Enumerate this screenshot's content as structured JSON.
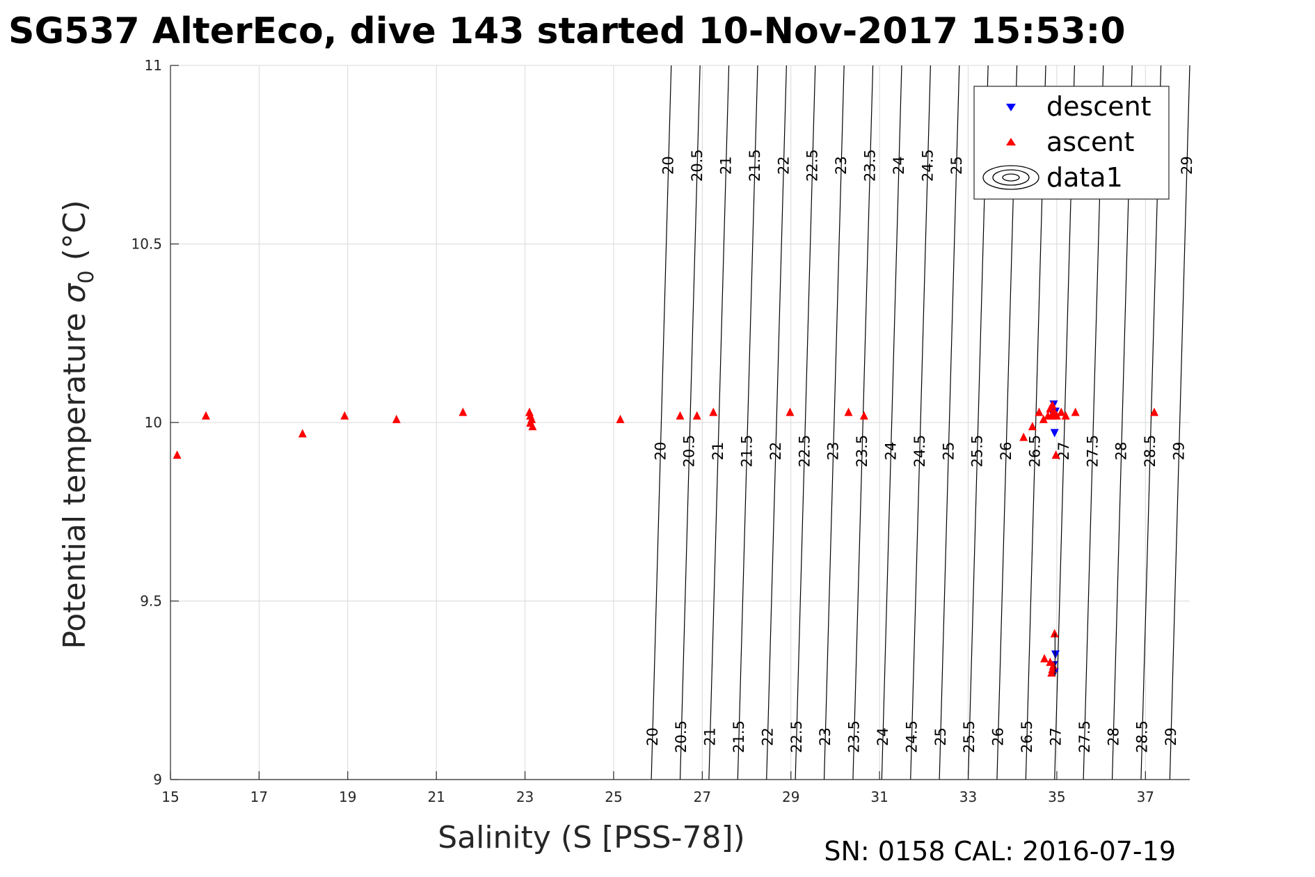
{
  "title": "SG537 AlterEco, dive 143 started 10-Nov-2017 15:53:0",
  "footer": "SN: 0158  CAL: 2016-07-19",
  "chart_data": {
    "type": "scatter",
    "title": "SG537 AlterEco, dive 143 started 10-Nov-2017 15:53:0",
    "xlabel": "Salinity (S [PSS-78])",
    "ylabel_main": "Potential temperature ",
    "ylabel_sigma": "σ",
    "ylabel_sub": "0",
    "ylabel_unit": " (°C)",
    "xlim": [
      15,
      38
    ],
    "ylim": [
      9,
      11
    ],
    "xticks": [
      15,
      17,
      19,
      21,
      23,
      25,
      27,
      29,
      31,
      33,
      35,
      37
    ],
    "yticks": [
      9,
      9.5,
      10,
      10.5,
      11
    ],
    "ytick_labels": [
      "9",
      "9.5",
      "10",
      "10.5",
      "11"
    ],
    "grid": true,
    "legend_position": "top-right",
    "series": [
      {
        "name": "descent",
        "marker": "triangle-down",
        "color": "#0000ff",
        "points": [
          [
            34.93,
            10.05
          ],
          [
            34.97,
            10.03
          ],
          [
            34.95,
            9.97
          ],
          [
            34.92,
            10.02
          ],
          [
            34.97,
            9.35
          ],
          [
            34.95,
            9.3
          ],
          [
            34.93,
            9.32
          ]
        ]
      },
      {
        "name": "ascent",
        "marker": "triangle-up",
        "color": "#ff0000",
        "points": [
          [
            15.15,
            9.91
          ],
          [
            15.8,
            10.02
          ],
          [
            17.98,
            9.97
          ],
          [
            18.93,
            10.02
          ],
          [
            20.1,
            10.01
          ],
          [
            21.6,
            10.03
          ],
          [
            23.1,
            10.03
          ],
          [
            23.12,
            10.02
          ],
          [
            23.15,
            10.01
          ],
          [
            23.12,
            10.0
          ],
          [
            23.17,
            9.99
          ],
          [
            25.15,
            10.01
          ],
          [
            26.5,
            10.02
          ],
          [
            26.88,
            10.02
          ],
          [
            27.25,
            10.03
          ],
          [
            28.98,
            10.03
          ],
          [
            30.3,
            10.03
          ],
          [
            30.65,
            10.02
          ],
          [
            34.25,
            9.96
          ],
          [
            34.45,
            9.99
          ],
          [
            34.6,
            10.03
          ],
          [
            34.7,
            10.01
          ],
          [
            34.8,
            10.02
          ],
          [
            34.85,
            10.04
          ],
          [
            34.9,
            10.05
          ],
          [
            34.95,
            10.03
          ],
          [
            35.0,
            10.02
          ],
          [
            34.88,
            10.02
          ],
          [
            35.1,
            10.03
          ],
          [
            35.2,
            10.02
          ],
          [
            35.42,
            10.03
          ],
          [
            37.2,
            10.03
          ],
          [
            34.98,
            9.91
          ],
          [
            34.95,
            9.41
          ],
          [
            34.72,
            9.34
          ],
          [
            34.85,
            9.33
          ],
          [
            34.9,
            9.31
          ],
          [
            34.88,
            9.3
          ],
          [
            34.92,
            9.32
          ]
        ]
      },
      {
        "name": "data1",
        "marker": "contour",
        "color": "#000000"
      }
    ],
    "isopycnals": [
      {
        "label": "20",
        "s_top": 26.3,
        "s_bot": 25.85
      },
      {
        "label": "20.5",
        "s_top": 26.95,
        "s_bot": 26.5
      },
      {
        "label": "21",
        "s_top": 27.6,
        "s_bot": 27.15
      },
      {
        "label": "21.5",
        "s_top": 28.25,
        "s_bot": 27.8
      },
      {
        "label": "22",
        "s_top": 28.9,
        "s_bot": 28.45
      },
      {
        "label": "22.5",
        "s_top": 29.55,
        "s_bot": 29.1
      },
      {
        "label": "23",
        "s_top": 30.2,
        "s_bot": 29.75
      },
      {
        "label": "23.5",
        "s_top": 30.85,
        "s_bot": 30.4
      },
      {
        "label": "24",
        "s_top": 31.5,
        "s_bot": 31.05
      },
      {
        "label": "24.5",
        "s_top": 32.15,
        "s_bot": 31.7
      },
      {
        "label": "25",
        "s_top": 32.8,
        "s_bot": 32.35
      },
      {
        "label": "25.5",
        "s_top": 33.45,
        "s_bot": 33.0
      },
      {
        "label": "26",
        "s_top": 34.1,
        "s_bot": 33.65
      },
      {
        "label": "26.5",
        "s_top": 34.75,
        "s_bot": 34.3
      },
      {
        "label": "27",
        "s_top": 35.4,
        "s_bot": 34.95
      },
      {
        "label": "27.5",
        "s_top": 36.05,
        "s_bot": 35.6
      },
      {
        "label": "28",
        "s_top": 36.7,
        "s_bot": 36.25
      },
      {
        "label": "28.5",
        "s_top": 37.35,
        "s_bot": 36.9
      },
      {
        "label": "29",
        "s_top": 38.0,
        "s_bot": 37.55
      }
    ],
    "isopycnal_label_rows": {
      "top_label_theta": 10.72,
      "top_labels": [
        "20",
        "20.5",
        "21",
        "21.5",
        "22",
        "22.5",
        "23",
        "23.5",
        "24",
        "24.5",
        "25",
        "29"
      ],
      "middle_label_theta": 9.92,
      "bottom_label_theta": 9.12
    }
  }
}
